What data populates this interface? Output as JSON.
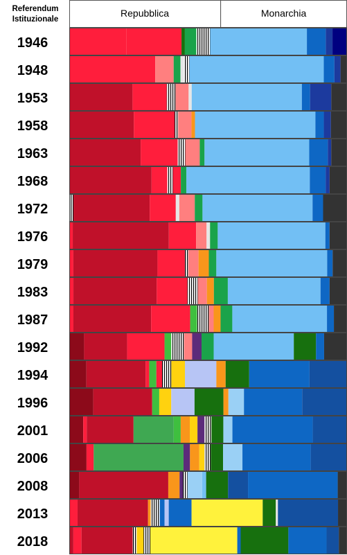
{
  "chart_data": {
    "type": "bar",
    "orientation": "horizontal",
    "stacked": true,
    "corner_label": [
      "Referendum",
      "Istituzionale"
    ],
    "header": {
      "left": "Repubblica",
      "right": "Monarchia",
      "split": 0.5439
    },
    "colors": {
      "1": "#c0112a",
      "2": "#ff1e3c",
      "3": "#ff7f7f",
      "4": "#1aa34a",
      "5": "#72bff4",
      "6": "#0e67c4",
      "7": "#1c3a9e",
      "8": "#333333",
      "9": "#000080",
      "10": "#8c0a1a",
      "11": "#17700e",
      "12": "#f9961b",
      "13": "#ffd20f",
      "14": "#b7c5f5",
      "15": "#5c2b7a",
      "16": "#3fa852",
      "17": "#e6e6e6",
      "18": "#1450a0",
      "19": "#fff23c",
      "20": "#3fbf3f",
      "21": "#9ad0f5"
    },
    "rows": [
      {
        "year": "1946",
        "segments": [
          [
            2,
            16.9
          ],
          [
            2,
            16.4
          ],
          [
            11,
            1.0
          ],
          [
            4,
            3.4
          ],
          [
            -1,
            4.1
          ],
          [
            5,
            28.7
          ],
          [
            6,
            5.6
          ],
          [
            7,
            2.0
          ],
          [
            9,
            4.3
          ]
        ]
      },
      {
        "year": "1948",
        "segments": [
          [
            2,
            25.2
          ],
          [
            3,
            5.4
          ],
          [
            4,
            2.0
          ],
          [
            17,
            1.0
          ],
          [
            -1,
            1.6
          ],
          [
            5,
            39.4
          ],
          [
            6,
            3.1
          ],
          [
            7,
            1.8
          ],
          [
            8,
            1.9
          ]
        ]
      },
      {
        "year": "1953",
        "segments": [
          [
            1,
            18.5
          ],
          [
            2,
            10.0
          ],
          [
            -1,
            2.6
          ],
          [
            3,
            3.8
          ],
          [
            17,
            0.9
          ],
          [
            5,
            32.2
          ],
          [
            6,
            2.4
          ],
          [
            7,
            6.2
          ],
          [
            8,
            4.6
          ]
        ]
      },
      {
        "year": "1958",
        "segments": [
          [
            1,
            18.4
          ],
          [
            2,
            11.6
          ],
          [
            -1,
            1.0
          ],
          [
            3,
            3.8
          ],
          [
            12,
            1.0
          ],
          [
            5,
            34.3
          ],
          [
            6,
            2.4
          ],
          [
            7,
            2.0
          ],
          [
            8,
            4.6
          ]
        ]
      },
      {
        "year": "1963",
        "segments": [
          [
            1,
            20.8
          ],
          [
            2,
            10.8
          ],
          [
            -1,
            2.2
          ],
          [
            3,
            4.2
          ],
          [
            4,
            1.4
          ],
          [
            5,
            30.5
          ],
          [
            6,
            5.4
          ],
          [
            7,
            1.0
          ],
          [
            8,
            4.6
          ]
        ]
      },
      {
        "year": "1968",
        "segments": [
          [
            1,
            20.8
          ],
          [
            2,
            4.0
          ],
          [
            -1,
            1.4
          ],
          [
            2,
            2.0
          ],
          [
            4,
            1.4
          ],
          [
            5,
            31.2
          ],
          [
            6,
            4.0
          ],
          [
            7,
            1.0
          ],
          [
            8,
            4.4
          ]
        ]
      },
      {
        "year": "1972",
        "segments": [
          [
            -1,
            1.2
          ],
          [
            1,
            21.7
          ],
          [
            2,
            7.4
          ],
          [
            17,
            1.0
          ],
          [
            3,
            4.4
          ],
          [
            4,
            2.2
          ],
          [
            5,
            31.3
          ],
          [
            6,
            3.0
          ],
          [
            8,
            6.8
          ]
        ]
      },
      {
        "year": "1976",
        "segments": [
          [
            2,
            1.0
          ],
          [
            1,
            27.5
          ],
          [
            2,
            7.8
          ],
          [
            3,
            3.0
          ],
          [
            17,
            1.0
          ],
          [
            4,
            2.2
          ],
          [
            5,
            30.8
          ],
          [
            6,
            1.2
          ],
          [
            8,
            5.0
          ]
        ]
      },
      {
        "year": "1979",
        "segments": [
          [
            2,
            1.2
          ],
          [
            1,
            24.6
          ],
          [
            2,
            8.0
          ],
          [
            -1,
            1.0
          ],
          [
            3,
            3.0
          ],
          [
            12,
            3.0
          ],
          [
            4,
            2.2
          ],
          [
            5,
            32.4
          ],
          [
            6,
            1.6
          ],
          [
            8,
            4.2
          ]
        ]
      },
      {
        "year": "1983",
        "segments": [
          [
            2,
            1.2
          ],
          [
            1,
            23.9
          ],
          [
            2,
            8.8
          ],
          [
            -1,
            3.0
          ],
          [
            3,
            2.6
          ],
          [
            12,
            2.0
          ],
          [
            4,
            4.0
          ],
          [
            5,
            26.6
          ],
          [
            6,
            2.6
          ],
          [
            8,
            5.0
          ]
        ]
      },
      {
        "year": "1987",
        "segments": [
          [
            2,
            1.2
          ],
          [
            1,
            22.5
          ],
          [
            2,
            11.3
          ],
          [
            20,
            2.0
          ],
          [
            -1,
            3.4
          ],
          [
            3,
            1.4
          ],
          [
            12,
            2.0
          ],
          [
            4,
            3.4
          ],
          [
            5,
            27.4
          ],
          [
            6,
            2.0
          ],
          [
            8,
            3.8
          ]
        ]
      },
      {
        "year": "1992",
        "segments": [
          [
            10,
            4.4
          ],
          [
            1,
            12.8
          ],
          [
            2,
            11.1
          ],
          [
            20,
            2.0
          ],
          [
            -1,
            3.8
          ],
          [
            3,
            2.4
          ],
          [
            15,
            2.8
          ],
          [
            4,
            3.6
          ],
          [
            5,
            23.8
          ],
          [
            11,
            6.6
          ],
          [
            6,
            2.4
          ],
          [
            8,
            6.8
          ]
        ]
      },
      {
        "year": "1994",
        "segments": [
          [
            10,
            4.8
          ],
          [
            1,
            16.6
          ],
          [
            2,
            1.0
          ],
          [
            20,
            2.0
          ],
          [
            2,
            1.6
          ],
          [
            -1,
            2.6
          ],
          [
            13,
            3.8
          ],
          [
            14,
            8.8
          ],
          [
            12,
            2.6
          ],
          [
            11,
            6.6
          ],
          [
            6,
            16.9
          ],
          [
            18,
            10.5
          ]
        ]
      },
      {
        "year": "1996",
        "segments": [
          [
            10,
            6.8
          ],
          [
            1,
            16.7
          ],
          [
            20,
            2.0
          ],
          [
            13,
            3.4
          ],
          [
            14,
            6.6
          ],
          [
            11,
            8.2
          ],
          [
            12,
            1.4
          ],
          [
            21,
            4.4
          ],
          [
            6,
            16.5
          ],
          [
            18,
            12.7
          ]
        ]
      },
      {
        "year": "2001",
        "segments": [
          [
            10,
            4.0
          ],
          [
            2,
            1.0
          ],
          [
            1,
            13.4
          ],
          [
            16,
            11.5
          ],
          [
            20,
            2.0
          ],
          [
            12,
            2.6
          ],
          [
            13,
            2.2
          ],
          [
            15,
            2.0
          ],
          [
            -1,
            2.0
          ],
          [
            11,
            3.4
          ],
          [
            21,
            2.6
          ],
          [
            6,
            23.0
          ],
          [
            18,
            9.8
          ]
        ]
      },
      {
        "year": "2006",
        "segments": [
          [
            10,
            4.8
          ],
          [
            2,
            2.0
          ],
          [
            16,
            25.0
          ],
          [
            15,
            1.8
          ],
          [
            12,
            2.6
          ],
          [
            13,
            1.4
          ],
          [
            -1,
            1.8
          ],
          [
            11,
            3.4
          ],
          [
            21,
            5.4
          ],
          [
            6,
            19.0
          ],
          [
            18,
            10.1
          ]
        ]
      },
      {
        "year": "2008",
        "segments": [
          [
            10,
            3.0
          ],
          [
            1,
            26.8
          ],
          [
            12,
            3.4
          ],
          [
            15,
            1.0
          ],
          [
            -1,
            1.4
          ],
          [
            21,
            4.4
          ],
          [
            5,
            1.2
          ],
          [
            11,
            6.6
          ],
          [
            18,
            6.0
          ],
          [
            6,
            27.0
          ],
          [
            8,
            2.8
          ]
        ]
      },
      {
        "year": "2013",
        "segments": [
          [
            2,
            2.4
          ],
          [
            1,
            20.4
          ],
          [
            12,
            0.8
          ],
          [
            -1,
            2.6
          ],
          [
            6,
            1.4
          ],
          [
            14,
            1.2
          ],
          [
            6,
            6.6
          ],
          [
            19,
            20.6
          ],
          [
            11,
            3.8
          ],
          [
            17,
            0.6
          ],
          [
            18,
            17.4
          ],
          [
            8,
            2.6
          ]
        ]
      },
      {
        "year": "2018",
        "segments": [
          [
            1,
            1.2
          ],
          [
            2,
            2.4
          ],
          [
            1,
            15.0
          ],
          [
            -1,
            1.2
          ],
          [
            13,
            2.0
          ],
          [
            -1,
            2.0
          ],
          [
            19,
            25.5
          ],
          [
            6,
            1.0
          ],
          [
            11,
            14.0
          ],
          [
            6,
            11.2
          ],
          [
            18,
            3.6
          ],
          [
            8,
            2.4
          ]
        ]
      }
    ]
  }
}
